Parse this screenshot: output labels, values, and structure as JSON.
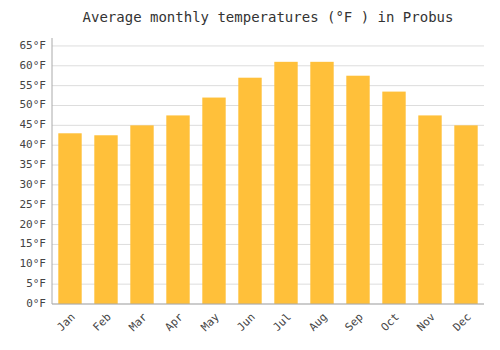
{
  "chart_data": {
    "type": "bar",
    "title": "Average monthly temperatures (°F ) in Probus",
    "categories": [
      "Jan",
      "Feb",
      "Mar",
      "Apr",
      "May",
      "Jun",
      "Jul",
      "Aug",
      "Sep",
      "Oct",
      "Nov",
      "Dec"
    ],
    "values": [
      43,
      42.5,
      45,
      47.5,
      52,
      57,
      61,
      61,
      57.5,
      53.5,
      47.5,
      45
    ],
    "color": "#FFC03A",
    "ylim": [
      0,
      67
    ],
    "yticks": [
      {
        "value": 0,
        "label": "0°F"
      },
      {
        "value": 5,
        "label": "5°F"
      },
      {
        "value": 10,
        "label": "10°F"
      },
      {
        "value": 15,
        "label": "15°F"
      },
      {
        "value": 20,
        "label": "20°F"
      },
      {
        "value": 25,
        "label": "25°F"
      },
      {
        "value": 30,
        "label": "30°F"
      },
      {
        "value": 35,
        "label": "35°F"
      },
      {
        "value": 40,
        "label": "40°F"
      },
      {
        "value": 45,
        "label": "45°F"
      },
      {
        "value": 50,
        "label": "50°F"
      },
      {
        "value": 55,
        "label": "55°F"
      },
      {
        "value": 60,
        "label": "60°F"
      },
      {
        "value": 65,
        "label": "65°F"
      }
    ],
    "grid": true
  }
}
